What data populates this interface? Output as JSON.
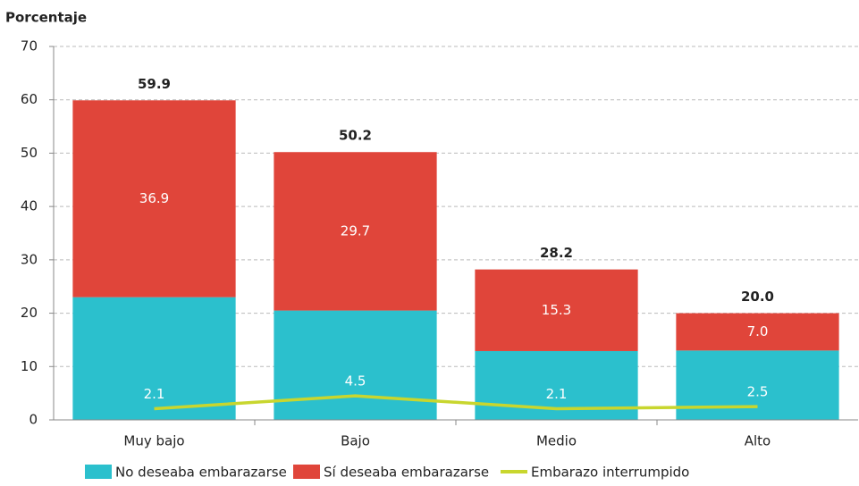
{
  "chart_data": {
    "type": "stacked_bar_line",
    "y_label": "Porcentaje",
    "categories": [
      "Muy bajo",
      "Bajo",
      "Medio",
      "Alto"
    ],
    "series": [
      {
        "name": "No deseaba embarazarse",
        "color": "#2bc0cd",
        "values": [
          23.0,
          20.5,
          12.9,
          13.0
        ]
      },
      {
        "name": "Sí deseaba embarazarse",
        "color": "#e0453a",
        "values": [
          36.9,
          29.7,
          15.3,
          7.0
        ],
        "value_labels": [
          "36.9",
          "29.7",
          "15.3",
          "7.0"
        ]
      },
      {
        "name": "Embarazo interrumpido",
        "color": "#c8d62e",
        "type": "line",
        "values": [
          2.1,
          4.5,
          2.1,
          2.5
        ]
      }
    ],
    "totals": [
      59.9,
      50.2,
      28.2,
      20.0
    ],
    "total_labels": [
      "59.9",
      "50.2",
      "28.2",
      "20.0"
    ],
    "ylim": [
      0,
      70
    ],
    "yticks": [
      0,
      10,
      20,
      30,
      40,
      50,
      60,
      70
    ],
    "grid": true,
    "legend": "bottom"
  }
}
